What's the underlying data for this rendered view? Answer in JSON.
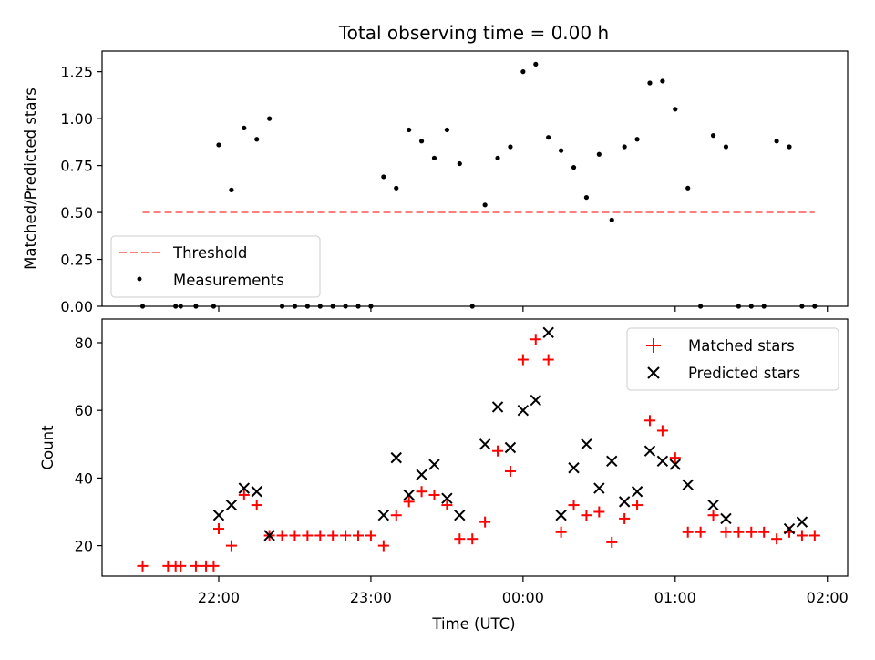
{
  "chart_data": [
    {
      "type": "scatter",
      "title": "Total observing time = 0.00 h",
      "ylabel": "Matched/Predicted stars",
      "xlabel": "",
      "ylim": [
        0,
        1.36
      ],
      "xlim": [
        "21:14",
        "02:08"
      ],
      "y_ticks": [
        "0.00",
        "0.25",
        "0.50",
        "0.75",
        "1.00",
        "1.25"
      ],
      "y_tick_values": [
        0,
        0.25,
        0.5,
        0.75,
        1.0,
        1.25
      ],
      "x_tick_values": [
        "22:00",
        "23:00",
        "00:00",
        "01:00",
        "02:00"
      ],
      "grid": false,
      "legend_placement": "lower-left",
      "series": [
        {
          "name": "Threshold",
          "style": "dashed-line",
          "color": "#ff7f7f",
          "x": [
            "21:30",
            "01:55"
          ],
          "y": [
            0.5,
            0.5
          ]
        },
        {
          "name": "Measurements",
          "style": "dots",
          "color": "#000000",
          "x": [
            "21:30",
            "21:43",
            "21:45",
            "21:51",
            "21:58",
            "22:00",
            "22:05",
            "22:10",
            "22:15",
            "22:20",
            "22:25",
            "22:30",
            "22:35",
            "22:40",
            "22:45",
            "22:50",
            "22:55",
            "23:00",
            "23:05",
            "23:10",
            "23:15",
            "23:20",
            "23:25",
            "23:30",
            "23:35",
            "23:40",
            "23:45",
            "23:50",
            "23:55",
            "00:00",
            "00:05",
            "00:10",
            "00:15",
            "00:20",
            "00:25",
            "00:30",
            "00:35",
            "00:40",
            "00:45",
            "00:50",
            "00:55",
            "01:00",
            "01:05",
            "01:10",
            "01:15",
            "01:20",
            "01:25",
            "01:30",
            "01:35",
            "01:40",
            "01:45",
            "01:50",
            "01:55"
          ],
          "y": [
            0,
            0,
            0,
            0,
            0,
            0.86,
            0.62,
            0.95,
            0.89,
            1.0,
            0,
            0,
            0,
            0,
            0,
            0,
            0,
            0,
            0.69,
            0.63,
            0.94,
            0.88,
            0.79,
            0.94,
            0.76,
            0,
            0.54,
            0.79,
            0.85,
            1.25,
            1.29,
            0.9,
            0.83,
            0.74,
            0.58,
            0.81,
            0.46,
            0.85,
            0.89,
            1.19,
            1.2,
            1.05,
            0.63,
            0,
            0.91,
            0.85,
            0,
            0,
            0,
            0.88,
            0.85,
            0,
            0
          ],
          "y_adj": [
            0,
            0,
            0,
            0,
            0,
            0,
            0,
            0,
            0,
            0,
            0,
            0,
            0,
            0,
            0,
            0,
            0,
            0,
            0,
            0,
            0,
            0,
            0,
            0,
            0,
            0,
            0,
            0,
            0,
            0,
            0,
            0,
            0,
            0,
            0,
            0,
            0,
            0,
            0,
            0,
            0,
            0,
            0,
            0,
            0,
            0,
            0,
            0,
            0,
            0,
            0,
            0,
            0
          ]
        }
      ]
    },
    {
      "type": "scatter",
      "title": "",
      "ylabel": "Count",
      "xlabel": "Time (UTC)",
      "ylim": [
        11,
        87
      ],
      "xlim": [
        "21:14",
        "02:08"
      ],
      "y_ticks": [
        "20",
        "40",
        "60",
        "80"
      ],
      "y_tick_values": [
        20,
        40,
        60,
        80
      ],
      "x_ticks": [
        "22:00",
        "23:00",
        "00:00",
        "01:00",
        "02:00"
      ],
      "x_tick_values": [
        "22:00",
        "23:00",
        "00:00",
        "01:00",
        "02:00"
      ],
      "grid": false,
      "legend_placement": "upper-right",
      "series": [
        {
          "name": "Matched stars",
          "marker": "plus",
          "color": "#ff0000",
          "x": [
            "21:30",
            "21:43",
            "21:45",
            "21:51",
            "21:58",
            "22:00",
            "22:05",
            "22:10",
            "22:15",
            "22:20",
            "22:25",
            "22:30",
            "22:35",
            "22:40",
            "22:45",
            "22:50",
            "22:55",
            "23:00",
            "23:05",
            "23:10",
            "23:15",
            "23:20",
            "23:25",
            "23:30",
            "23:35",
            "23:40",
            "23:45",
            "23:50",
            "23:55",
            "00:00",
            "00:05",
            "00:10",
            "00:15",
            "00:20",
            "00:25",
            "00:30",
            "00:35",
            "00:40",
            "00:45",
            "00:50",
            "00:55",
            "01:00",
            "01:05",
            "01:10",
            "01:15",
            "01:20",
            "01:25",
            "01:30",
            "01:35",
            "01:40",
            "01:45",
            "01:50",
            "01:55"
          ],
          "y": [
            14,
            14,
            14,
            14,
            14,
            25,
            20,
            35,
            32,
            23,
            23,
            23,
            23,
            23,
            23,
            23,
            23,
            23,
            20,
            29,
            33,
            36,
            35,
            32,
            22,
            22,
            27,
            48,
            42,
            75,
            81,
            75,
            24,
            32,
            29,
            30,
            21,
            28,
            32,
            57,
            54,
            46,
            24,
            24,
            29,
            24,
            24,
            24,
            24,
            22,
            24,
            23,
            23
          ],
          "x_extra": [
            "21:40",
            "21:55"
          ],
          "y_extra": [
            14,
            14
          ]
        },
        {
          "name": "Predicted stars",
          "marker": "x",
          "color": "#000000",
          "x": [
            "22:00",
            "22:05",
            "22:10",
            "22:15",
            "22:20",
            "23:05",
            "23:10",
            "23:15",
            "23:20",
            "23:25",
            "23:30",
            "23:35",
            "23:45",
            "23:50",
            "23:55",
            "00:00",
            "00:05",
            "00:10",
            "00:15",
            "00:20",
            "00:25",
            "00:30",
            "00:35",
            "00:40",
            "00:45",
            "00:50",
            "00:55",
            "01:00",
            "01:05",
            "01:15",
            "01:20",
            "01:45",
            "01:50"
          ],
          "y": [
            29,
            32,
            37,
            36,
            23,
            29,
            46,
            35,
            41,
            44,
            34,
            29,
            50,
            61,
            49,
            60,
            63,
            83,
            29,
            43,
            50,
            37,
            45,
            33,
            36,
            48,
            45,
            44,
            38,
            32,
            28,
            25,
            27
          ]
        }
      ]
    }
  ]
}
